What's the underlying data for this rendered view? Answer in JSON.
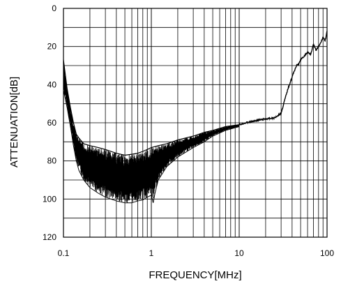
{
  "chart_data": {
    "type": "line",
    "xlabel": "FREQUENCY[MHz]",
    "ylabel": "ATTENUATION[dB]",
    "x_scale": "log",
    "xlim": [
      0.1,
      100
    ],
    "ylim": [
      0,
      120
    ],
    "y_inverted": true,
    "grid": true,
    "x_tick_labels": [
      "0.1",
      "1",
      "10",
      "100"
    ],
    "x_ticks": [
      0.1,
      1,
      10,
      100
    ],
    "y_tick_labels": [
      "0",
      "20",
      "40",
      "60",
      "80",
      "100",
      "120"
    ],
    "y_ticks": [
      0,
      20,
      40,
      60,
      80,
      100,
      120
    ],
    "line_color": "#000000",
    "series": [
      {
        "upper_envelope": {
          "x": [
            0.1,
            0.11,
            0.12,
            0.13,
            0.14,
            0.15,
            0.17,
            0.2,
            0.25,
            0.3,
            0.4,
            0.5,
            0.6,
            0.7,
            0.8,
            0.9,
            1.0,
            1.2,
            1.5,
            2,
            3,
            4,
            5,
            7,
            10
          ],
          "y": [
            27,
            42,
            52,
            60,
            66,
            68,
            71,
            72,
            73,
            74,
            76,
            77,
            76.5,
            76,
            75,
            74,
            73,
            72,
            71,
            69,
            67,
            65,
            64,
            62,
            61
          ]
        },
        "lower_envelope": {
          "x": [
            0.1,
            0.11,
            0.12,
            0.13,
            0.14,
            0.15,
            0.17,
            0.2,
            0.25,
            0.3,
            0.4,
            0.5,
            0.6,
            0.7,
            0.8,
            0.9,
            1.0,
            1.05,
            1.1,
            1.2,
            1.5,
            2,
            3,
            4,
            5,
            7,
            10
          ],
          "y": [
            43,
            52,
            62,
            72,
            80,
            85,
            90,
            94,
            97,
            99,
            101,
            102,
            102,
            101,
            100.5,
            99,
            98,
            102,
            97,
            90,
            83,
            78,
            73,
            70,
            67,
            64,
            62
          ]
        },
        "trace": {
          "x": [
            10,
            12,
            15,
            20,
            25,
            30,
            33,
            36,
            40,
            43,
            45,
            48,
            50,
            55,
            60,
            65,
            70,
            75,
            80,
            85,
            90,
            95,
            100
          ],
          "y": [
            61,
            60,
            59,
            58,
            57.5,
            55,
            48,
            42,
            36,
            32,
            30,
            29,
            27,
            25,
            23,
            24,
            19,
            22,
            20,
            18,
            15,
            17,
            12
          ]
        }
      }
    ]
  }
}
